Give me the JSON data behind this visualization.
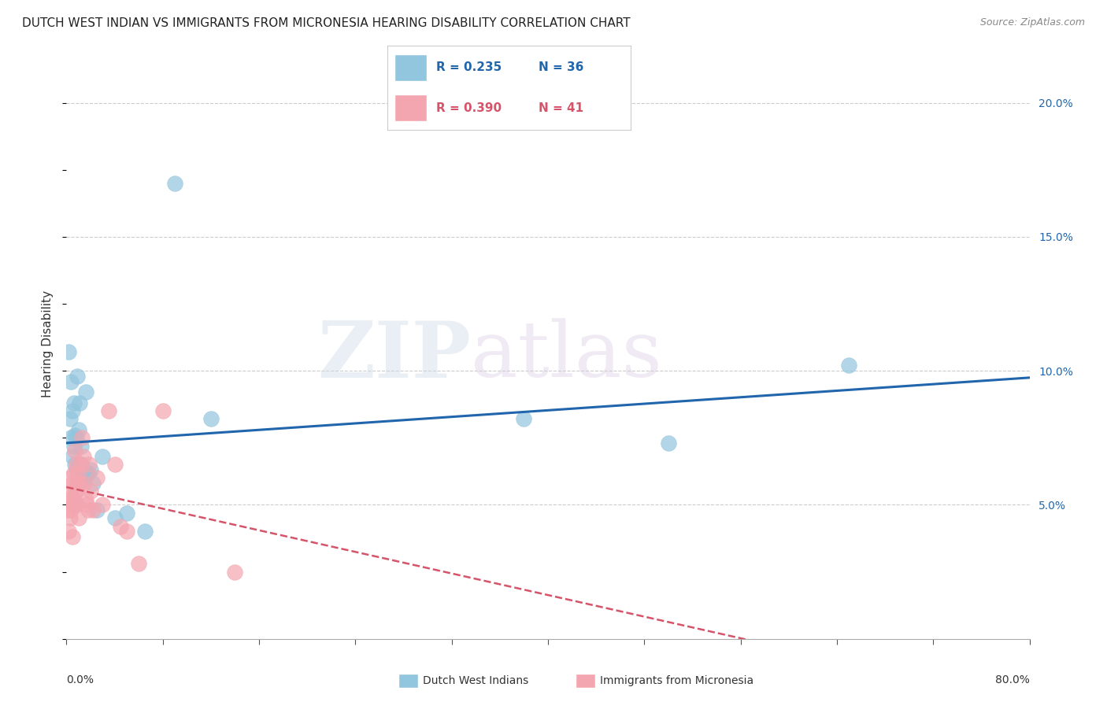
{
  "title": "DUTCH WEST INDIAN VS IMMIGRANTS FROM MICRONESIA HEARING DISABILITY CORRELATION CHART",
  "source": "Source: ZipAtlas.com",
  "ylabel": "Hearing Disability",
  "xlim": [
    0.0,
    0.8
  ],
  "ylim": [
    0.0,
    0.22
  ],
  "yticks": [
    0.05,
    0.1,
    0.15,
    0.2
  ],
  "ytick_labels": [
    "5.0%",
    "10.0%",
    "15.0%",
    "20.0%"
  ],
  "series1_label": "Dutch West Indians",
  "series1_color": "#92c5de",
  "series1_line_color": "#2166ac",
  "series2_label": "Immigrants from Micronesia",
  "series2_color": "#f4a6b0",
  "series2_line_color": "#d6546a",
  "grid_color": "#cccccc",
  "background_color": "#ffffff",
  "blue_points_x": [
    0.002,
    0.003,
    0.004,
    0.004,
    0.005,
    0.005,
    0.006,
    0.006,
    0.007,
    0.007,
    0.008,
    0.008,
    0.009,
    0.01,
    0.01,
    0.011,
    0.012,
    0.012,
    0.013,
    0.014,
    0.015,
    0.016,
    0.017,
    0.018,
    0.02,
    0.022,
    0.025,
    0.03,
    0.04,
    0.05,
    0.065,
    0.09,
    0.12,
    0.38,
    0.5,
    0.65
  ],
  "blue_points_y": [
    0.107,
    0.082,
    0.096,
    0.075,
    0.085,
    0.068,
    0.088,
    0.072,
    0.065,
    0.076,
    0.063,
    0.075,
    0.098,
    0.078,
    0.065,
    0.088,
    0.072,
    0.065,
    0.063,
    0.063,
    0.06,
    0.092,
    0.062,
    0.062,
    0.063,
    0.058,
    0.048,
    0.068,
    0.045,
    0.047,
    0.04,
    0.17,
    0.082,
    0.082,
    0.073,
    0.102
  ],
  "pink_points_x": [
    0.001,
    0.002,
    0.002,
    0.003,
    0.003,
    0.004,
    0.004,
    0.005,
    0.005,
    0.005,
    0.006,
    0.006,
    0.007,
    0.007,
    0.007,
    0.008,
    0.008,
    0.009,
    0.009,
    0.01,
    0.01,
    0.011,
    0.012,
    0.013,
    0.014,
    0.015,
    0.016,
    0.017,
    0.018,
    0.019,
    0.02,
    0.022,
    0.025,
    0.03,
    0.035,
    0.04,
    0.045,
    0.05,
    0.06,
    0.08,
    0.14
  ],
  "pink_points_y": [
    0.048,
    0.052,
    0.04,
    0.06,
    0.045,
    0.055,
    0.048,
    0.058,
    0.05,
    0.038,
    0.062,
    0.052,
    0.055,
    0.05,
    0.07,
    0.065,
    0.055,
    0.05,
    0.058,
    0.062,
    0.045,
    0.058,
    0.065,
    0.075,
    0.068,
    0.058,
    0.052,
    0.05,
    0.048,
    0.065,
    0.055,
    0.048,
    0.06,
    0.05,
    0.085,
    0.065,
    0.042,
    0.04,
    0.028,
    0.085,
    0.025
  ],
  "title_fontsize": 11,
  "source_fontsize": 9,
  "axis_label_fontsize": 11
}
